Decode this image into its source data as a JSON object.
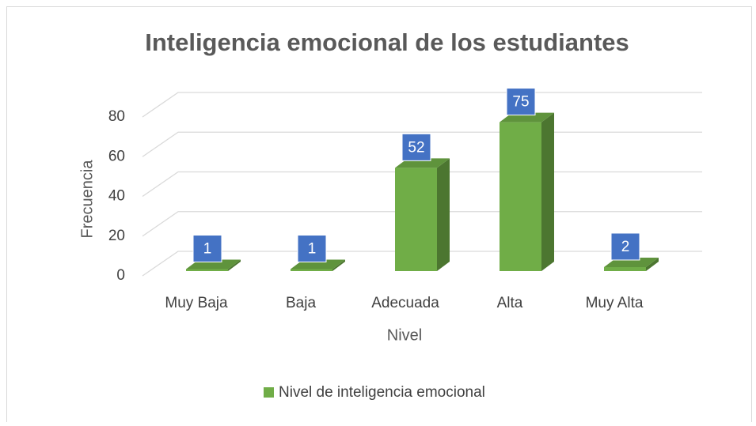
{
  "chart_data": {
    "type": "bar3d",
    "title": "Inteligencia emocional de los estudiantes",
    "x_label": "Nivel",
    "y_label": "Frecuencia",
    "categories": [
      "Muy Baja",
      "Baja",
      "Adecuada",
      "Alta",
      "Muy Alta"
    ],
    "series": [
      {
        "name": "Nivel de inteligencia emocional",
        "color": "#70ad47",
        "values": [
          1,
          1,
          52,
          75,
          2
        ]
      }
    ],
    "ylim": [
      0,
      80
    ],
    "yticks": [
      0,
      20,
      40,
      60,
      80
    ],
    "grid": true,
    "legend": "bottom"
  }
}
